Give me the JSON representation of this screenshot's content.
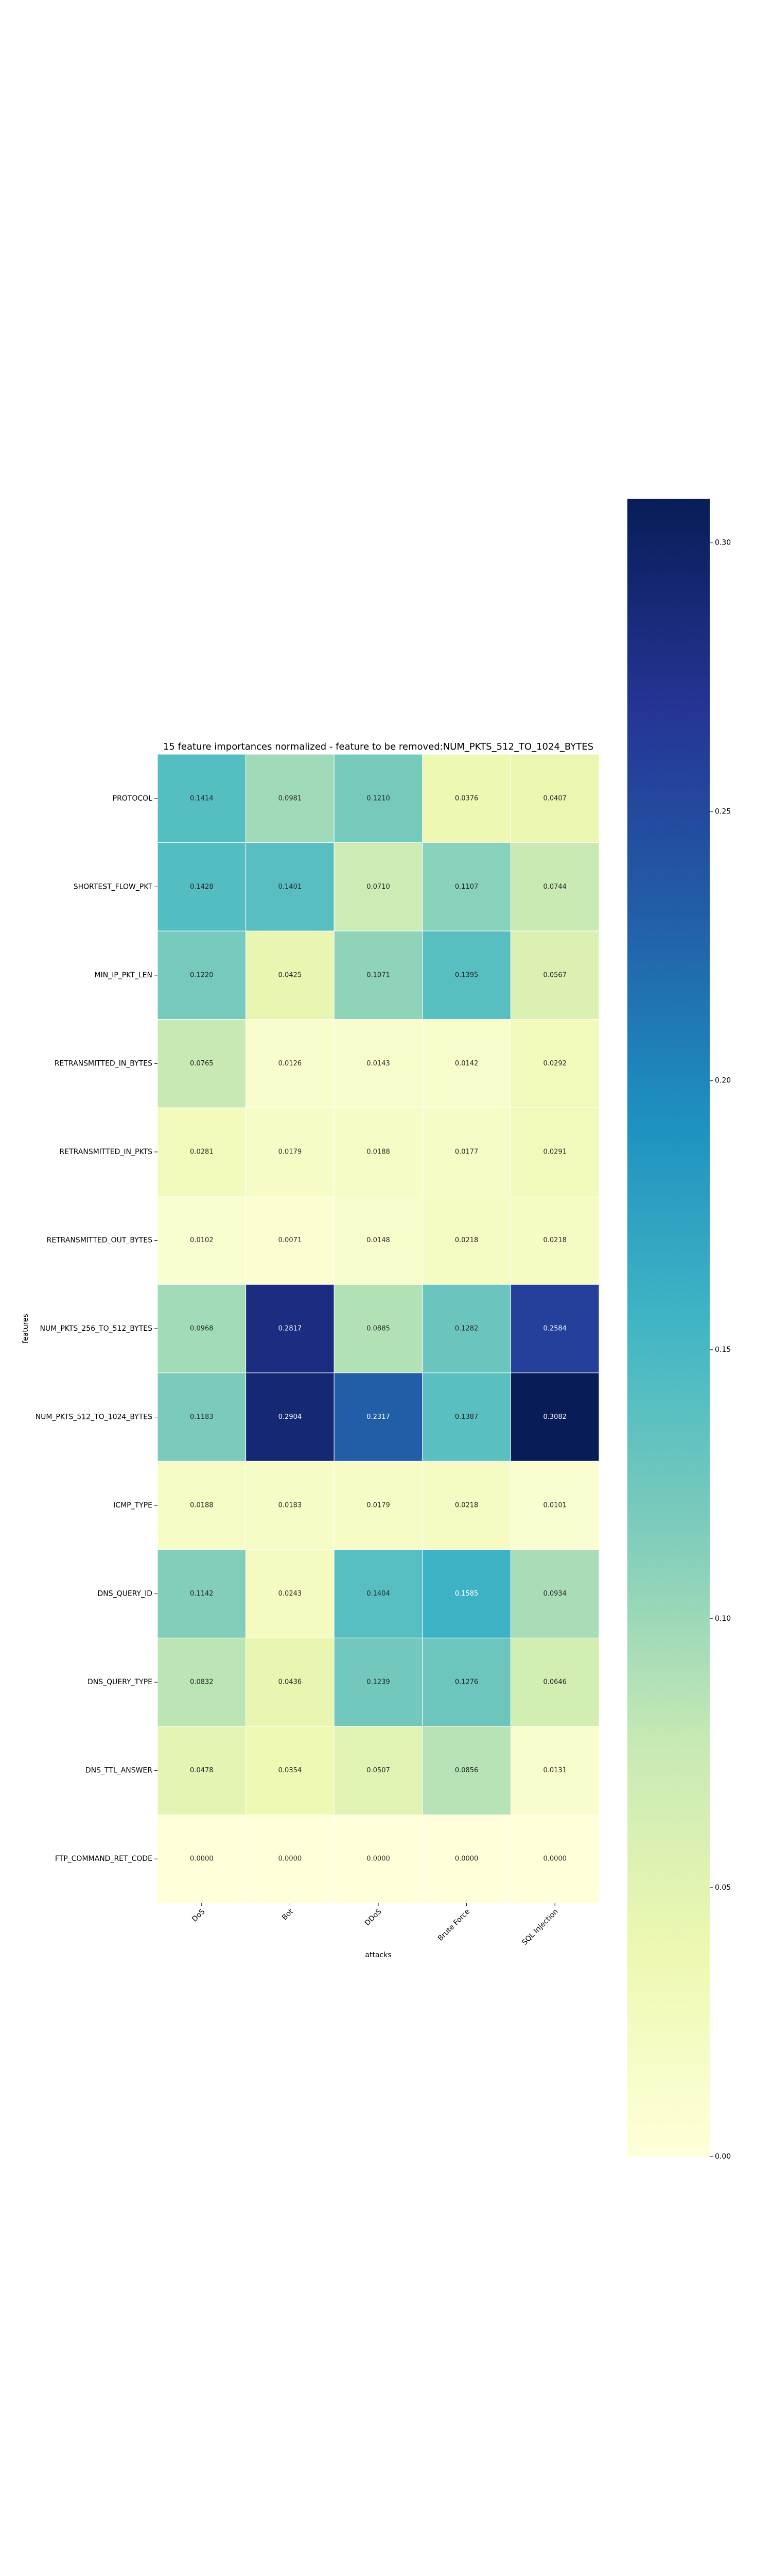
{
  "chart_data": {
    "type": "heatmap",
    "title": "15 feature importances normalized - feature to be removed:NUM_PKTS_512_TO_1024_BYTES",
    "x_label": "attacks",
    "y_label": "features",
    "x_categories": [
      "DoS",
      "Bot",
      "DDoS",
      "Brute Force",
      "SQL Injection"
    ],
    "y_categories": [
      "PROTOCOL",
      "SHORTEST_FLOW_PKT",
      "MIN_IP_PKT_LEN",
      "RETRANSMITTED_IN_BYTES",
      "RETRANSMITTED_IN_PKTS",
      "RETRANSMITTED_OUT_BYTES",
      "NUM_PKTS_256_TO_512_BYTES",
      "NUM_PKTS_512_TO_1024_BYTES",
      "ICMP_TYPE",
      "DNS_QUERY_ID",
      "DNS_QUERY_TYPE",
      "DNS_TTL_ANSWER",
      "FTP_COMMAND_RET_CODE"
    ],
    "values": [
      [
        0.1414,
        0.0981,
        0.121,
        0.0376,
        0.0407
      ],
      [
        0.1428,
        0.1401,
        0.071,
        0.1107,
        0.0744
      ],
      [
        0.122,
        0.0425,
        0.1071,
        0.1395,
        0.0567
      ],
      [
        0.0765,
        0.0126,
        0.0143,
        0.0142,
        0.0292
      ],
      [
        0.0281,
        0.0179,
        0.0188,
        0.0177,
        0.0291
      ],
      [
        0.0102,
        0.0071,
        0.0148,
        0.0218,
        0.0218
      ],
      [
        0.0968,
        0.2817,
        0.0885,
        0.1282,
        0.2584
      ],
      [
        0.1183,
        0.2904,
        0.2317,
        0.1387,
        0.3082
      ],
      [
        0.0188,
        0.0183,
        0.0179,
        0.0218,
        0.0101
      ],
      [
        0.1142,
        0.0243,
        0.1404,
        0.1585,
        0.0934
      ],
      [
        0.0832,
        0.0436,
        0.1239,
        0.1276,
        0.0646
      ],
      [
        0.0478,
        0.0354,
        0.0507,
        0.0856,
        0.0131
      ],
      [
        0,
        0,
        0,
        0,
        0
      ]
    ],
    "value_labels": [
      [
        "0.1414",
        "0.0981",
        "0.1210",
        "0.0376",
        "0.0407"
      ],
      [
        "0.1428",
        "0.1401",
        "0.0710",
        "0.1107",
        "0.0744"
      ],
      [
        "0.1220",
        "0.0425",
        "0.1071",
        "0.1395",
        "0.0567"
      ],
      [
        "0.0765",
        "0.0126",
        "0.0143",
        "0.0142",
        "0.0292"
      ],
      [
        "0.0281",
        "0.0179",
        "0.0188",
        "0.0177",
        "0.0291"
      ],
      [
        "0.0102",
        "0.0071",
        "0.0148",
        "0.0218",
        "0.0218"
      ],
      [
        "0.0968",
        "0.2817",
        "0.0885",
        "0.1282",
        "0.2584"
      ],
      [
        "0.1183",
        "0.2904",
        "0.2317",
        "0.1387",
        "0.3082"
      ],
      [
        "0.0188",
        "0.0183",
        "0.0179",
        "0.0218",
        "0.0101"
      ],
      [
        "0.1142",
        "0.0243",
        "0.1404",
        "0.1585",
        "0.0934"
      ],
      [
        "0.0832",
        "0.0436",
        "0.1239",
        "0.1276",
        "0.0646"
      ],
      [
        "0.0478",
        "0.0354",
        "0.0507",
        "0.0856",
        "0.0131"
      ],
      [
        "0.0000",
        "0.0000",
        "0.0000",
        "0.0000",
        "0.0000"
      ]
    ],
    "colormap": [
      "#ffffd9",
      "#edf8b1",
      "#c7e9b4",
      "#7fcdbb",
      "#41b6c4",
      "#1d91c0",
      "#225ea8",
      "#253494",
      "#081d58"
    ],
    "colorbar_lim": [
      0,
      0.3082
    ],
    "colorbar_ticks": [
      {
        "value": 0,
        "label": "0.00"
      },
      {
        "value": 0.05,
        "label": "0.05"
      },
      {
        "value": 0.1,
        "label": "0.10"
      },
      {
        "value": 0.15,
        "label": "0.15"
      },
      {
        "value": 0.2,
        "label": "0.20"
      },
      {
        "value": 0.25,
        "label": "0.25"
      },
      {
        "value": 0.3,
        "label": "0.30"
      }
    ]
  }
}
